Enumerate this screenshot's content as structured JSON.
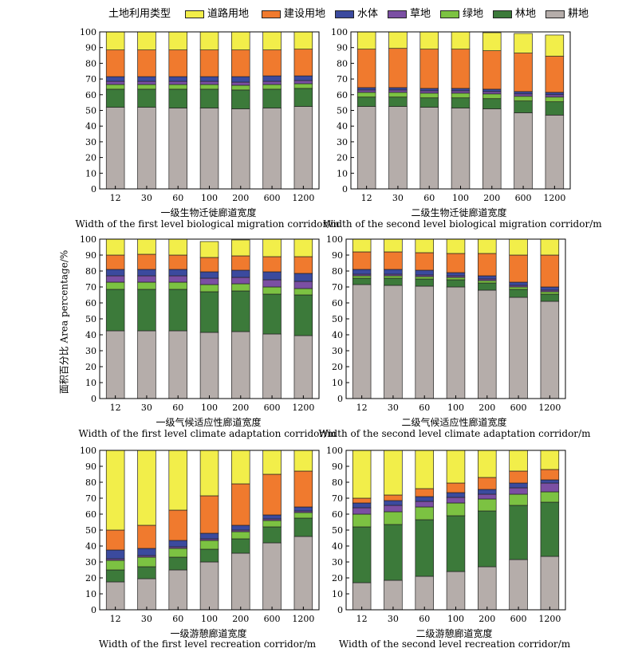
{
  "legend": {
    "title": "土地利用类型",
    "items": [
      {
        "name": "道路用地",
        "color": "#F2EE4A"
      },
      {
        "name": "建设用地",
        "color": "#F07A2E"
      },
      {
        "name": "水体",
        "color": "#3B4A9E"
      },
      {
        "name": "草地",
        "color": "#7B4FA3"
      },
      {
        "name": "绿地",
        "color": "#7CC242"
      },
      {
        "name": "林地",
        "color": "#3C7A3A"
      },
      {
        "name": "耕地",
        "color": "#B5ADAA"
      }
    ]
  },
  "ylabel": "面积百分比 Area percentage/%",
  "chart_data": [
    {
      "type": "bar",
      "stacked": true,
      "caption_cn": "一级生物迁徙廊道宽度",
      "caption_en": "Width of the first level biological migration corridor/m",
      "categories": [
        "12",
        "30",
        "60",
        "100",
        "200",
        "600",
        "1200"
      ],
      "ylim": [
        0,
        100
      ],
      "yticks": [
        0,
        10,
        20,
        30,
        40,
        50,
        60,
        70,
        80,
        90,
        100
      ],
      "series": [
        {
          "name": "耕地",
          "values": [
            52,
            52,
            51.5,
            51.5,
            51,
            51.5,
            52.5
          ]
        },
        {
          "name": "林地",
          "values": [
            11.5,
            11.5,
            12,
            12,
            12,
            12,
            11.5
          ]
        },
        {
          "name": "绿地",
          "values": [
            3,
            3,
            3,
            3,
            3,
            3,
            3
          ]
        },
        {
          "name": "草地",
          "values": [
            2,
            2,
            2,
            2,
            2,
            2,
            2
          ]
        },
        {
          "name": "水体",
          "values": [
            3,
            3,
            3,
            3,
            3.5,
            3.5,
            3
          ]
        },
        {
          "name": "建设用地",
          "values": [
            17,
            17,
            17,
            17,
            17,
            16.5,
            17
          ]
        },
        {
          "name": "道路用地",
          "values": [
            11.5,
            11.5,
            11.5,
            11.5,
            11.5,
            11.5,
            11
          ]
        }
      ]
    },
    {
      "type": "bar",
      "stacked": true,
      "caption_cn": "二级生物迁徙廊道宽度",
      "caption_en": "Width of the second level biological migration corridor/m",
      "categories": [
        "12",
        "30",
        "60",
        "100",
        "200",
        "600",
        "1200"
      ],
      "ylim": [
        0,
        100
      ],
      "yticks": [
        0,
        10,
        20,
        30,
        40,
        50,
        60,
        70,
        80,
        90,
        100
      ],
      "series": [
        {
          "name": "耕地",
          "values": [
            52.5,
            52.5,
            52,
            51.5,
            51,
            48.5,
            47
          ]
        },
        {
          "name": "林地",
          "values": [
            6,
            6,
            6,
            6.5,
            6.5,
            7.5,
            8.5
          ]
        },
        {
          "name": "绿地",
          "values": [
            3,
            3,
            3,
            3,
            3,
            3,
            3
          ]
        },
        {
          "name": "草地",
          "values": [
            1.5,
            1.5,
            1.5,
            1.5,
            1.5,
            1.5,
            1.5
          ]
        },
        {
          "name": "水体",
          "values": [
            1.5,
            1.5,
            1.5,
            1.5,
            1.5,
            1.5,
            1.5
          ]
        },
        {
          "name": "建设用地",
          "values": [
            24.5,
            25,
            25,
            25,
            24.5,
            24.5,
            23
          ]
        },
        {
          "name": "道路用地",
          "values": [
            11,
            10.5,
            11,
            11,
            11.5,
            12.5,
            13.5
          ]
        }
      ]
    },
    {
      "type": "bar",
      "stacked": true,
      "caption_cn": "一级气候适应性廊道宽度",
      "caption_en": "Width of the first level climate adaptation corridor/m",
      "categories": [
        "12",
        "30",
        "60",
        "100",
        "200",
        "600",
        "1200"
      ],
      "ylim": [
        0,
        100
      ],
      "yticks": [
        0,
        10,
        20,
        30,
        40,
        50,
        60,
        70,
        80,
        90,
        100
      ],
      "series": [
        {
          "name": "耕地",
          "values": [
            42.5,
            42.5,
            42.5,
            41.5,
            42,
            40.5,
            39.5
          ]
        },
        {
          "name": "林地",
          "values": [
            26,
            26,
            26,
            25.5,
            25.5,
            25,
            25.5
          ]
        },
        {
          "name": "绿地",
          "values": [
            4.5,
            4.5,
            4.5,
            4.5,
            4.5,
            4.5,
            4
          ]
        },
        {
          "name": "草地",
          "values": [
            4,
            4,
            4,
            4,
            4,
            4.5,
            4.5
          ]
        },
        {
          "name": "水体",
          "values": [
            4,
            4,
            4,
            4,
            4.5,
            5,
            5
          ]
        },
        {
          "name": "建设用地",
          "values": [
            9,
            9.5,
            9,
            9,
            9,
            9.5,
            10.5
          ]
        },
        {
          "name": "道路用地",
          "values": [
            10,
            9.5,
            10,
            10,
            10,
            11,
            11
          ]
        }
      ]
    },
    {
      "type": "bar",
      "stacked": true,
      "caption_cn": "二级气候适应性廊道宽度",
      "caption_en": "Width of the second level climate adaptation corridor/m",
      "categories": [
        "12",
        "30",
        "60",
        "100",
        "200",
        "600",
        "1200"
      ],
      "ylim": [
        0,
        100
      ],
      "yticks": [
        0,
        10,
        20,
        30,
        40,
        50,
        60,
        70,
        80,
        90,
        100
      ],
      "series": [
        {
          "name": "耕地",
          "values": [
            71.5,
            71,
            70.5,
            70,
            68,
            63.5,
            61
          ]
        },
        {
          "name": "林地",
          "values": [
            4,
            4.5,
            4.5,
            4.5,
            4.5,
            5,
            4.5
          ]
        },
        {
          "name": "绿地",
          "values": [
            1.5,
            1.5,
            1.5,
            1.5,
            1.5,
            1.5,
            1.5
          ]
        },
        {
          "name": "草地",
          "values": [
            1,
            1,
            1,
            1,
            1,
            1,
            1
          ]
        },
        {
          "name": "水体",
          "values": [
            3,
            3,
            3,
            2,
            2,
            2,
            2
          ]
        },
        {
          "name": "建设用地",
          "values": [
            11,
            11,
            11,
            12,
            14,
            17,
            20
          ]
        },
        {
          "name": "道路用地",
          "values": [
            8,
            8,
            8.5,
            9,
            9,
            10,
            10
          ]
        }
      ]
    },
    {
      "type": "bar",
      "stacked": true,
      "caption_cn": "一级游憩廊道宽度",
      "caption_en": "Width of the first level recreation corridor/m",
      "categories": [
        "12",
        "30",
        "60",
        "100",
        "200",
        "600",
        "1200"
      ],
      "ylim": [
        0,
        100
      ],
      "yticks": [
        0,
        10,
        20,
        30,
        40,
        50,
        60,
        70,
        80,
        90,
        100
      ],
      "series": [
        {
          "name": "耕地",
          "values": [
            17.5,
            19.5,
            25,
            30,
            35.5,
            42,
            46
          ]
        },
        {
          "name": "林地",
          "values": [
            7.5,
            7.5,
            8,
            8,
            9,
            10,
            11.5
          ]
        },
        {
          "name": "绿地",
          "values": [
            6,
            6,
            5.5,
            5.5,
            4.5,
            4,
            3.5
          ]
        },
        {
          "name": "草地",
          "values": [
            1,
            1,
            1,
            1,
            1,
            1,
            1
          ]
        },
        {
          "name": "水体",
          "values": [
            5.5,
            4.5,
            4,
            3.5,
            3,
            2.5,
            2.5
          ]
        },
        {
          "name": "建设用地",
          "values": [
            12.5,
            14.5,
            19,
            23.5,
            26,
            25.5,
            22.5
          ]
        },
        {
          "name": "道路用地",
          "values": [
            50,
            47,
            37.5,
            28.5,
            21,
            15,
            13
          ]
        }
      ]
    },
    {
      "type": "bar",
      "stacked": true,
      "caption_cn": "二级游憩廊道宽度",
      "caption_en": "Width of the second level recreation corridor/m",
      "categories": [
        "12",
        "30",
        "60",
        "100",
        "200",
        "600",
        "1200"
      ],
      "ylim": [
        0,
        100
      ],
      "yticks": [
        0,
        10,
        20,
        30,
        40,
        50,
        60,
        70,
        80,
        90,
        100
      ],
      "series": [
        {
          "name": "耕地",
          "values": [
            17,
            18.5,
            21,
            24,
            27,
            31.5,
            33.5
          ]
        },
        {
          "name": "林地",
          "values": [
            35,
            35,
            35.5,
            35,
            35,
            34,
            34
          ]
        },
        {
          "name": "绿地",
          "values": [
            8,
            8,
            8,
            8,
            7.5,
            7,
            6.5
          ]
        },
        {
          "name": "草地",
          "values": [
            4,
            4,
            3.5,
            3.5,
            3,
            4,
            5.5
          ]
        },
        {
          "name": "水体",
          "values": [
            3,
            3,
            3,
            3,
            3,
            3,
            2
          ]
        },
        {
          "name": "建设用地",
          "values": [
            3,
            3.5,
            5,
            6,
            7.5,
            7.5,
            6.5
          ]
        },
        {
          "name": "道路用地",
          "values": [
            30,
            28,
            24,
            20.5,
            17,
            13,
            12
          ]
        }
      ]
    }
  ]
}
